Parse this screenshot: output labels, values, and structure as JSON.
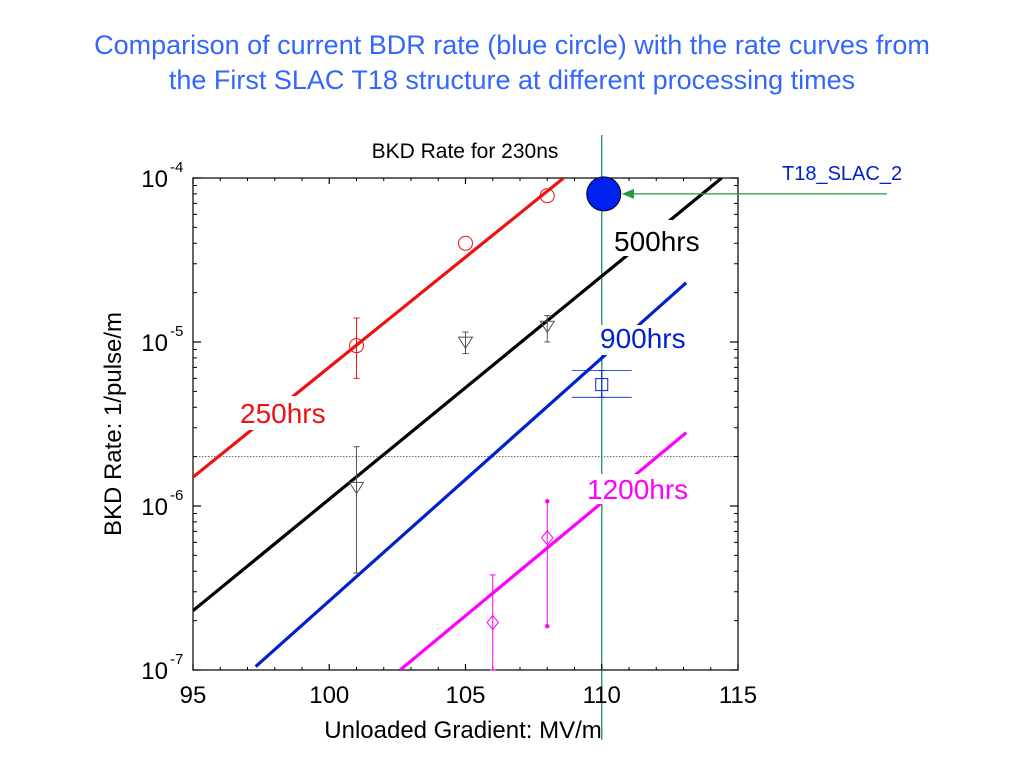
{
  "slide": {
    "title_line1": "Comparison of current BDR rate (blue circle) with the rate curves from",
    "title_line2": "the First SLAC T18 structure at different processing times"
  },
  "colors": {
    "title": "#3366ff",
    "h250": "#ee1111",
    "h500": "#000000",
    "h900": "#0022cc",
    "h1200": "#ff00ff",
    "current": "#0022ee",
    "arrow": "#229944",
    "teal_line": "#1a8a7a",
    "errorbar_grey": "#555555"
  },
  "chart_data": {
    "type": "line",
    "title": "BKD Rate for 230ns",
    "xlabel": "Unloaded Gradient: MV/m",
    "ylabel": "BKD Rate: 1/pulse/m",
    "xlim": [
      95,
      115
    ],
    "ylim": [
      1e-07,
      0.0001
    ],
    "yscale": "log",
    "x_ticks": [
      95,
      100,
      105,
      110,
      115
    ],
    "y_ticks": [
      {
        "value": 1e-07,
        "base": "10",
        "exp": "-7"
      },
      {
        "value": 1e-06,
        "base": "10",
        "exp": "-6"
      },
      {
        "value": 1e-05,
        "base": "10",
        "exp": "-5"
      },
      {
        "value": 0.0001,
        "base": "10",
        "exp": "-4"
      }
    ],
    "grid": false,
    "series": [
      {
        "name": "250hrs",
        "color_key": "h250",
        "line": {
          "x": [
            95.0,
            108.6
          ],
          "y": [
            1.5e-06,
            0.0001
          ]
        },
        "points": [
          {
            "x": 101,
            "y": 9.5e-06,
            "lo": 6e-06,
            "hi": 1.4e-05
          },
          {
            "x": 105,
            "y": 4e-05
          },
          {
            "x": 108,
            "y": 7.8e-05
          }
        ],
        "marker": "circle"
      },
      {
        "name": "500hrs",
        "color_key": "h500",
        "line": {
          "x": [
            95.0,
            114.4
          ],
          "y": [
            2.3e-07,
            0.0001
          ]
        },
        "points": [
          {
            "x": 101,
            "y": 1.3e-06,
            "lo": 3.9e-07,
            "hi": 2.3e-06
          },
          {
            "x": 105,
            "y": 1e-05,
            "lo": 8.5e-06,
            "hi": 1.15e-05
          },
          {
            "x": 108,
            "y": 1.25e-05,
            "lo": 1e-05,
            "hi": 1.45e-05
          }
        ],
        "marker": "triangle-down"
      },
      {
        "name": "900hrs",
        "color_key": "h900",
        "line": {
          "x": [
            97.3,
            113.1
          ],
          "y": [
            1.05e-07,
            2.3e-05
          ]
        },
        "points": [
          {
            "x": 110,
            "y": 5.5e-06,
            "lo": 4.6e-06,
            "hi": 6.7e-06,
            "xerr": 1.1
          }
        ],
        "marker": "square"
      },
      {
        "name": "1200hrs",
        "color_key": "h1200",
        "line": {
          "x": [
            102.6,
            113.1
          ],
          "y": [
            1e-07,
            2.8e-06
          ]
        },
        "points": [
          {
            "x": 106,
            "y": 1.95e-07,
            "lo": 1e-07,
            "hi": 3.8e-07
          },
          {
            "x": 108,
            "y": 6.4e-07,
            "lo": 1.85e-07,
            "hi": 1.07e-06
          }
        ],
        "marker": "diamond"
      }
    ],
    "current_point": {
      "name": "T18_SLAC_2",
      "x": 110,
      "y": 8e-05
    },
    "reference_lines": [
      {
        "orientation": "horizontal",
        "y": 2e-06,
        "style": "dotted"
      },
      {
        "orientation": "vertical",
        "x": 110,
        "color_key": "teal_line"
      }
    ],
    "annotations": [
      {
        "text": "250hrs",
        "color_key": "h250"
      },
      {
        "text": "500hrs",
        "color_key": "h500"
      },
      {
        "text": "900hrs",
        "color_key": "h900"
      },
      {
        "text": "1200hrs",
        "color_key": "h1200"
      },
      {
        "text": "T18_SLAC_2",
        "color_key": "h900"
      }
    ]
  }
}
